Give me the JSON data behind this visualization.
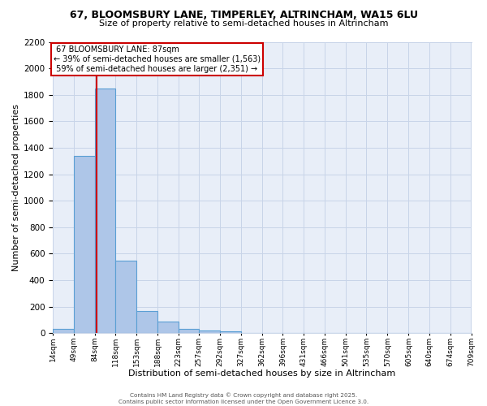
{
  "title1": "67, BLOOMSBURY LANE, TIMPERLEY, ALTRINCHAM, WA15 6LU",
  "title2": "Size of property relative to semi-detached houses in Altrincham",
  "xlabel": "Distribution of semi-detached houses by size in Altrincham",
  "ylabel": "Number of semi-detached properties",
  "property_label": "67 BLOOMSBURY LANE: 87sqm",
  "pct_smaller": 39,
  "pct_larger": 59,
  "n_smaller": 1563,
  "n_larger": 2351,
  "bin_edges": [
    14,
    49,
    84,
    118,
    153,
    188,
    223,
    257,
    292,
    327,
    362,
    396,
    431,
    466,
    501,
    535,
    570,
    605,
    640,
    674,
    709
  ],
  "bin_labels": [
    "14sqm",
    "49sqm",
    "84sqm",
    "118sqm",
    "153sqm",
    "188sqm",
    "223sqm",
    "257sqm",
    "292sqm",
    "327sqm",
    "362sqm",
    "396sqm",
    "431sqm",
    "466sqm",
    "501sqm",
    "535sqm",
    "570sqm",
    "605sqm",
    "640sqm",
    "674sqm",
    "709sqm"
  ],
  "counts": [
    30,
    1340,
    1850,
    545,
    170,
    87,
    30,
    20,
    16,
    0,
    0,
    0,
    0,
    0,
    0,
    0,
    0,
    0,
    0,
    0
  ],
  "bar_color": "#aec6e8",
  "bar_edge_color": "#5a9fd4",
  "redline_x": 87,
  "annotation_box_color": "#cc0000",
  "background_color": "#e8eef8",
  "grid_color": "#c8d4e8",
  "ylim": [
    0,
    2200
  ],
  "yticks": [
    0,
    200,
    400,
    600,
    800,
    1000,
    1200,
    1400,
    1600,
    1800,
    2000,
    2200
  ],
  "footer_line1": "Contains HM Land Registry data © Crown copyright and database right 2025.",
  "footer_line2": "Contains public sector information licensed under the Open Government Licence 3.0."
}
